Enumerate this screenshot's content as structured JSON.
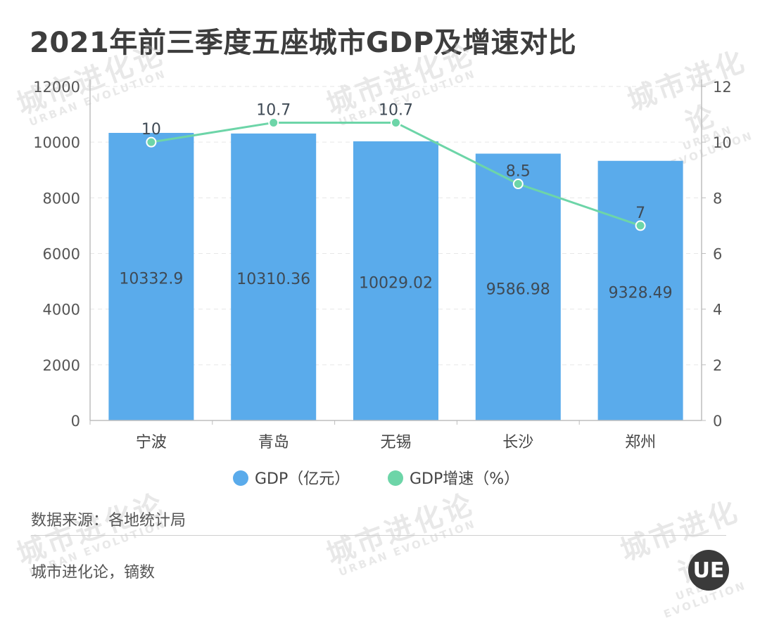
{
  "title": "2021年前三季度五座城市GDP及增速对比",
  "source": "数据来源：各地统计局",
  "credit": "城市进化论，镝数",
  "logo_text": "UE",
  "watermark": {
    "cn": "城市进化论",
    "en": "URBAN EVOLUTION"
  },
  "colors": {
    "bar": "#5aabeb",
    "line": "#6dd5a8",
    "title": "#3d3d3d",
    "axis": "#bdbdbd",
    "grid": "#e6e6e6",
    "text": "#555555"
  },
  "chart_data": {
    "type": "bar",
    "categories": [
      "宁波",
      "青岛",
      "无锡",
      "长沙",
      "郑州"
    ],
    "series": [
      {
        "name": "GDP（亿元）",
        "type": "bar",
        "axis": "left",
        "values": [
          10332.9,
          10310.36,
          10029.02,
          9586.98,
          9328.49
        ],
        "labels": [
          "10332.9",
          "10310.36",
          "10029.02",
          "9586.98",
          "9328.49"
        ]
      },
      {
        "name": "GDP增速（%）",
        "type": "line",
        "axis": "right",
        "values": [
          10,
          10.7,
          10.7,
          8.5,
          7
        ],
        "labels": [
          "10",
          "10.7",
          "10.7",
          "8.5",
          "7"
        ]
      }
    ],
    "y_left": {
      "ylim": [
        0,
        12000
      ],
      "ticks": [
        0,
        2000,
        4000,
        6000,
        8000,
        10000,
        12000
      ]
    },
    "y_right": {
      "ylim": [
        0,
        12
      ],
      "ticks": [
        0,
        2,
        4,
        6,
        8,
        10,
        12
      ]
    },
    "grid": true,
    "legend_position": "bottom"
  }
}
